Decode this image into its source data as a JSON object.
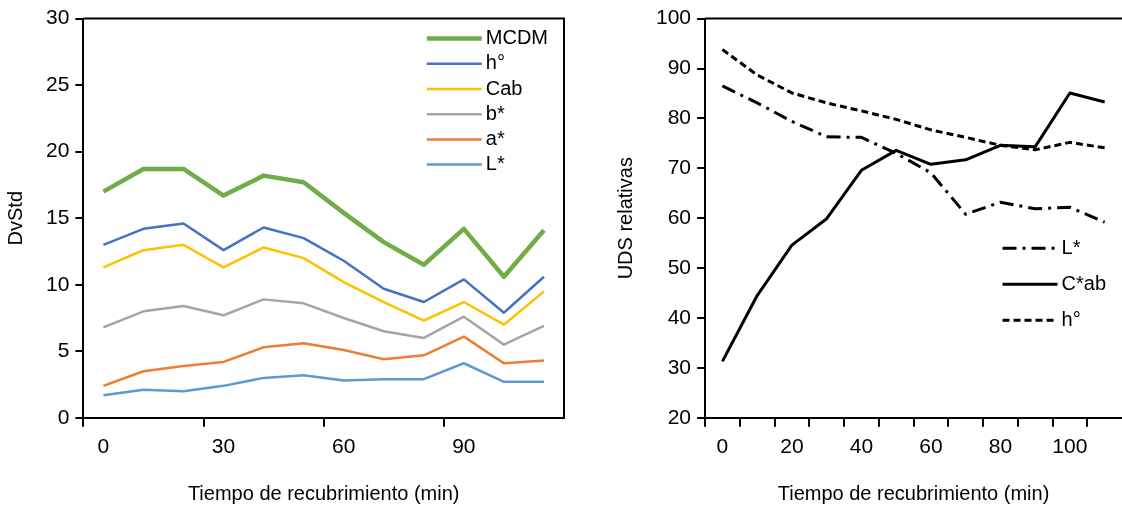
{
  "chart_data": [
    {
      "type": "line",
      "xlabel": "Tiempo de recubrimiento (min)",
      "ylabel": "DvStd",
      "categories": [
        "0",
        null,
        null,
        "30",
        null,
        null,
        "60",
        null,
        null,
        "90",
        null,
        null
      ],
      "ylim": [
        0,
        30
      ],
      "yticks": [
        0,
        5,
        10,
        15,
        20,
        25,
        30
      ],
      "grid": false,
      "legend": "top right",
      "line_style": "solid",
      "series": [
        {
          "name": "MCDM",
          "color": "#70ad47",
          "values": [
            17.0,
            18.7,
            18.7,
            16.7,
            18.2,
            17.7,
            15.4,
            13.2,
            11.5,
            14.2,
            10.6,
            14.1
          ]
        },
        {
          "name": "h°",
          "color": "#4472c4",
          "values": [
            13.0,
            14.2,
            14.6,
            12.6,
            14.3,
            13.5,
            11.8,
            9.7,
            8.7,
            10.4,
            7.9,
            10.6
          ]
        },
        {
          "name": "Cab",
          "color": "#ffc000",
          "values": [
            11.3,
            12.6,
            13.0,
            11.3,
            12.8,
            12.0,
            10.2,
            8.7,
            7.3,
            8.7,
            7.0,
            9.5
          ]
        },
        {
          "name": "b*",
          "color": "#a5a5a5",
          "values": [
            6.8,
            8.0,
            8.4,
            7.7,
            8.9,
            8.6,
            7.5,
            6.5,
            6.0,
            7.6,
            5.5,
            6.9
          ]
        },
        {
          "name": "a*",
          "color": "#ed7d31",
          "values": [
            2.4,
            3.5,
            3.9,
            4.2,
            5.3,
            5.6,
            5.1,
            4.4,
            4.7,
            6.1,
            4.1,
            4.3
          ]
        },
        {
          "name": "L*",
          "color": "#5b9bd5",
          "values": [
            1.7,
            2.1,
            2.0,
            2.4,
            3.0,
            3.2,
            2.8,
            2.9,
            2.9,
            4.1,
            2.7,
            2.7
          ]
        }
      ]
    },
    {
      "type": "line",
      "xlabel": "Tiempo de recubrimiento (min)",
      "ylabel": "UDS relativas",
      "categories": [
        "0",
        null,
        "20",
        null,
        "40",
        null,
        "60",
        null,
        "80",
        null,
        "100",
        null
      ],
      "ylim": [
        20,
        100
      ],
      "yticks": [
        20,
        30,
        40,
        50,
        60,
        70,
        80,
        90,
        100
      ],
      "grid": false,
      "legend": "right",
      "series": [
        {
          "name": "L*",
          "color": "#000000",
          "line_style": "dashdot",
          "values": [
            86.5,
            83.1,
            79.4,
            76.3,
            76.2,
            73.0,
            69.1,
            60.8,
            63.2,
            61.9,
            62.2,
            59.2
          ]
        },
        {
          "name": "C*ab",
          "color": "#000000",
          "line_style": "solid",
          "values": [
            31.3,
            44.5,
            54.6,
            59.9,
            69.6,
            73.6,
            70.8,
            71.7,
            74.6,
            74.3,
            85.1,
            83.3
          ]
        },
        {
          "name": "h°",
          "color": "#000000",
          "line_style": "dashed",
          "values": [
            93.8,
            88.7,
            85.1,
            83.1,
            81.5,
            79.8,
            77.7,
            76.2,
            74.6,
            73.7,
            75.2,
            74.1
          ]
        }
      ]
    }
  ]
}
